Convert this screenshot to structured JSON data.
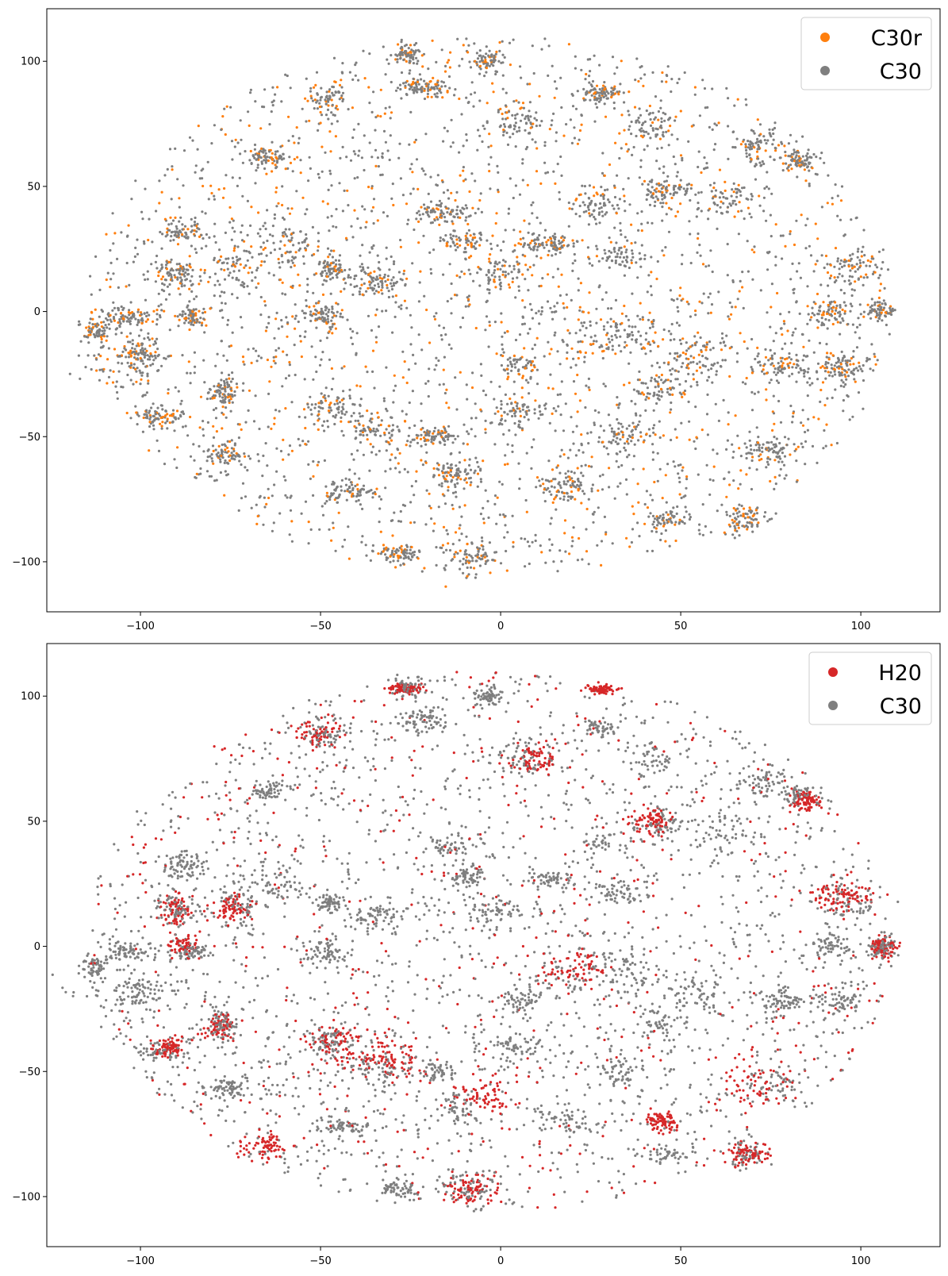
{
  "chart_data": [
    {
      "type": "scatter",
      "title": "",
      "xlabel": "",
      "ylabel": "",
      "xlim": [
        -126,
        122
      ],
      "ylim": [
        -120,
        121
      ],
      "xticks": [
        "−100",
        "−50",
        "0",
        "50",
        "100"
      ],
      "xtick_values": [
        -100,
        -50,
        0,
        50,
        100
      ],
      "yticks": [
        "100",
        "50",
        "0",
        "−50",
        "−100"
      ],
      "ytick_values": [
        100,
        50,
        0,
        -50,
        -100
      ],
      "grid": false,
      "legend_position": "top-right",
      "series": [
        {
          "name": "C30r",
          "color": "#ff7f0e"
        },
        {
          "name": "C30",
          "color": "#7f7f7f"
        }
      ],
      "clusters": [
        [
          -106,
          -17,
          8,
          8
        ],
        [
          -104,
          -2,
          4,
          2
        ],
        [
          -113,
          -8,
          2,
          2
        ],
        [
          -100,
          -18,
          3,
          3
        ],
        [
          -88,
          32,
          3,
          3
        ],
        [
          -90,
          15,
          3,
          3
        ],
        [
          -86,
          -2,
          2,
          2
        ],
        [
          -94,
          -42,
          4,
          2
        ],
        [
          -77,
          -32,
          2,
          3
        ],
        [
          -76,
          -57,
          3,
          2
        ],
        [
          -73,
          17,
          4,
          6
        ],
        [
          -65,
          62,
          3,
          2
        ],
        [
          -60,
          25,
          4,
          5
        ],
        [
          -49,
          85,
          3,
          3
        ],
        [
          -47,
          17,
          2,
          2
        ],
        [
          -49,
          -2,
          3,
          3
        ],
        [
          -47,
          -38,
          4,
          3
        ],
        [
          -43,
          -72,
          4,
          2
        ],
        [
          -35,
          12,
          4,
          3
        ],
        [
          -35,
          -48,
          4,
          4
        ],
        [
          -28,
          -97,
          3,
          2
        ],
        [
          -26,
          103,
          2,
          2
        ],
        [
          -22,
          90,
          3,
          2
        ],
        [
          -18,
          -50,
          3,
          2
        ],
        [
          -15,
          40,
          4,
          2
        ],
        [
          -10,
          28,
          3,
          2
        ],
        [
          -12,
          -65,
          3,
          3
        ],
        [
          -8,
          -97,
          4,
          4
        ],
        [
          -3,
          100,
          2,
          2
        ],
        [
          0,
          15,
          5,
          4
        ],
        [
          5,
          75,
          4,
          4
        ],
        [
          5,
          -40,
          4,
          3
        ],
        [
          5,
          -22,
          3,
          3
        ],
        [
          13,
          27,
          4,
          2
        ],
        [
          18,
          -70,
          4,
          3
        ],
        [
          22,
          -8,
          7,
          8
        ],
        [
          28,
          87,
          3,
          2
        ],
        [
          28,
          42,
          4,
          3
        ],
        [
          32,
          22,
          4,
          3
        ],
        [
          35,
          -10,
          5,
          5
        ],
        [
          33,
          -50,
          4,
          3
        ],
        [
          42,
          75,
          4,
          4
        ],
        [
          45,
          48,
          3,
          3
        ],
        [
          45,
          -30,
          4,
          3
        ],
        [
          46,
          -83,
          3,
          2
        ],
        [
          55,
          -18,
          5,
          5
        ],
        [
          62,
          45,
          4,
          4
        ],
        [
          68,
          -83,
          3,
          3
        ],
        [
          72,
          65,
          4,
          4
        ],
        [
          75,
          -55,
          4,
          4
        ],
        [
          78,
          -22,
          4,
          3
        ],
        [
          83,
          60,
          2,
          2
        ],
        [
          95,
          -22,
          3,
          3
        ],
        [
          97,
          17,
          4,
          4
        ],
        [
          106,
          0,
          2,
          2
        ],
        [
          92,
          0,
          3,
          3
        ]
      ]
    },
    {
      "type": "scatter",
      "title": "",
      "xlabel": "",
      "ylabel": "",
      "xlim": [
        -126,
        122
      ],
      "ylim": [
        -120,
        121
      ],
      "xticks": [
        "−100",
        "−50",
        "0",
        "50",
        "100"
      ],
      "xtick_values": [
        -100,
        -50,
        0,
        50,
        100
      ],
      "yticks": [
        "100",
        "50",
        "0",
        "−50",
        "−100"
      ],
      "ytick_values": [
        100,
        50,
        0,
        -50,
        -100
      ],
      "grid": false,
      "legend_position": "top-right",
      "series": [
        {
          "name": "H20",
          "color": "#d62728"
        },
        {
          "name": "C30",
          "color": "#7f7f7f"
        }
      ],
      "clusters": [
        [
          -106,
          -17,
          8,
          8
        ],
        [
          -104,
          -2,
          4,
          2
        ],
        [
          -113,
          -8,
          2,
          2
        ],
        [
          -100,
          -18,
          3,
          3
        ],
        [
          -88,
          32,
          3,
          3
        ],
        [
          -90,
          15,
          3,
          3
        ],
        [
          -86,
          -2,
          2,
          2
        ],
        [
          -94,
          -42,
          4,
          2
        ],
        [
          -77,
          -32,
          2,
          3
        ],
        [
          -76,
          -57,
          3,
          2
        ],
        [
          -73,
          17,
          4,
          6
        ],
        [
          -65,
          62,
          3,
          2
        ],
        [
          -60,
          25,
          4,
          5
        ],
        [
          -49,
          85,
          3,
          3
        ],
        [
          -47,
          17,
          2,
          2
        ],
        [
          -49,
          -2,
          3,
          3
        ],
        [
          -47,
          -38,
          4,
          3
        ],
        [
          -43,
          -72,
          4,
          2
        ],
        [
          -35,
          12,
          4,
          3
        ],
        [
          -35,
          -48,
          4,
          4
        ],
        [
          -28,
          -97,
          3,
          2
        ],
        [
          -26,
          103,
          2,
          2
        ],
        [
          -22,
          90,
          3,
          2
        ],
        [
          -18,
          -50,
          3,
          2
        ],
        [
          -15,
          40,
          4,
          2
        ],
        [
          -10,
          28,
          3,
          2
        ],
        [
          -12,
          -65,
          3,
          3
        ],
        [
          -8,
          -97,
          4,
          4
        ],
        [
          -3,
          100,
          2,
          2
        ],
        [
          0,
          15,
          5,
          4
        ],
        [
          5,
          75,
          4,
          4
        ],
        [
          5,
          -40,
          4,
          3
        ],
        [
          5,
          -22,
          3,
          3
        ],
        [
          13,
          27,
          4,
          2
        ],
        [
          18,
          -70,
          4,
          3
        ],
        [
          22,
          -8,
          7,
          8
        ],
        [
          28,
          87,
          3,
          2
        ],
        [
          28,
          42,
          4,
          3
        ],
        [
          32,
          22,
          4,
          3
        ],
        [
          35,
          -10,
          5,
          5
        ],
        [
          33,
          -50,
          4,
          3
        ],
        [
          42,
          75,
          4,
          4
        ],
        [
          45,
          48,
          3,
          3
        ],
        [
          45,
          -30,
          4,
          3
        ],
        [
          46,
          -83,
          3,
          2
        ],
        [
          55,
          -18,
          5,
          5
        ],
        [
          62,
          45,
          4,
          4
        ],
        [
          68,
          -83,
          3,
          3
        ],
        [
          72,
          65,
          4,
          4
        ],
        [
          75,
          -55,
          4,
          4
        ],
        [
          78,
          -22,
          4,
          3
        ],
        [
          83,
          60,
          2,
          2
        ],
        [
          95,
          -22,
          3,
          3
        ],
        [
          97,
          17,
          4,
          4
        ],
        [
          106,
          0,
          2,
          2
        ],
        [
          92,
          0,
          3,
          3
        ]
      ],
      "highlight_clusters": [
        [
          -65,
          -80,
          4,
          3
        ],
        [
          -45,
          -38,
          6,
          4
        ],
        [
          -30,
          -45,
          5,
          4
        ],
        [
          -5,
          -60,
          4,
          4
        ],
        [
          -8,
          -97,
          4,
          3
        ],
        [
          45,
          -70,
          2,
          2
        ],
        [
          70,
          -55,
          5,
          5
        ],
        [
          95,
          20,
          4,
          3
        ],
        [
          42,
          50,
          3,
          3
        ],
        [
          10,
          75,
          3,
          3
        ],
        [
          -50,
          85,
          3,
          3
        ],
        [
          -75,
          15,
          3,
          3
        ],
        [
          -90,
          15,
          2,
          3
        ],
        [
          -88,
          0,
          2,
          2
        ],
        [
          -92,
          -40,
          2,
          2
        ],
        [
          -78,
          -32,
          2,
          2
        ],
        [
          28,
          103,
          2,
          1
        ],
        [
          -26,
          103,
          2,
          1
        ],
        [
          106,
          0,
          2,
          2
        ],
        [
          68,
          -83,
          3,
          2
        ],
        [
          85,
          58,
          2,
          2
        ],
        [
          20,
          -10,
          4,
          4
        ]
      ]
    }
  ]
}
